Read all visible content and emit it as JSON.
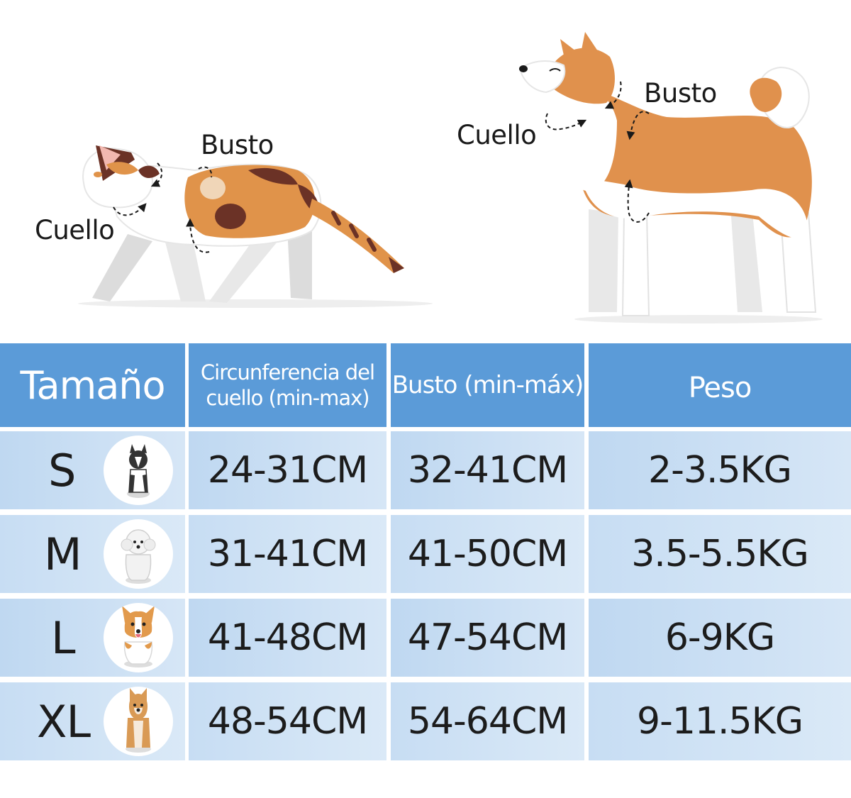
{
  "illustration": {
    "cat_busto_label": "Busto",
    "cat_cuello_label": "Cuello",
    "dog_busto_label": "Busto",
    "dog_cuello_label": "Cuello"
  },
  "table": {
    "headers": [
      "Tamaño",
      "Circunferencia del cuello (min-max)",
      "Busto (min-máx)",
      "Peso"
    ],
    "rows": [
      {
        "size": "S",
        "neck": "24-31CM",
        "bust": "32-41CM",
        "weight": "2-3.5KG",
        "icon": "boston-terrier-icon"
      },
      {
        "size": "M",
        "neck": "31-41CM",
        "bust": "41-50CM",
        "weight": "3.5-5.5KG",
        "icon": "poodle-icon"
      },
      {
        "size": "L",
        "neck": "41-48CM",
        "bust": "47-54CM",
        "weight": "6-9KG",
        "icon": "corgi-icon"
      },
      {
        "size": "XL",
        "neck": "48-54CM",
        "bust": "54-64CM",
        "weight": "9-11.5KG",
        "icon": "shiba-inu-icon"
      }
    ]
  },
  "colors": {
    "header_bg": "#5b9bd8",
    "row_bg": "#cfe1f4",
    "cat_orange": "#e0934a",
    "cat_brown": "#6b3226",
    "dog_orange": "#e0914d"
  }
}
